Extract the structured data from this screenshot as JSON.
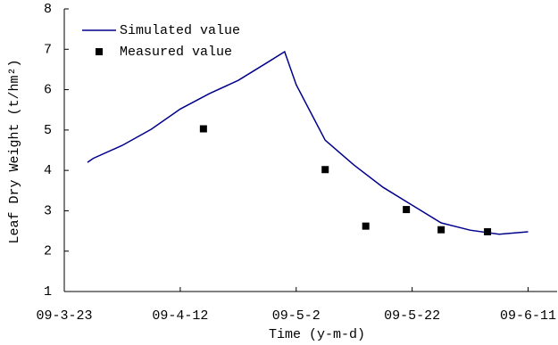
{
  "chart_data": {
    "type": "line",
    "x_label": "Time (y-m-d)",
    "y_label": "Leaf Dry Weight (t/hm²)",
    "xlim": [
      "09-3-23",
      "09-6-16"
    ],
    "xticks": [
      "09-3-23",
      "09-4-12",
      "09-5-2",
      "09-5-22",
      "09-6-11"
    ],
    "ylim": [
      1,
      8
    ],
    "yticks": [
      1,
      2,
      3,
      4,
      5,
      6,
      7,
      8
    ],
    "legend": "upper left",
    "series": [
      {
        "name": "Simulated value",
        "type": "line",
        "color": "#00008b",
        "x": [
          "09-3-27",
          "09-3-28",
          "09-4-2",
          "09-4-7",
          "09-4-12",
          "09-4-17",
          "09-4-22",
          "09-4-27",
          "09-4-30",
          "09-5-2",
          "09-5-7",
          "09-5-12",
          "09-5-17",
          "09-5-22",
          "09-5-27",
          "09-6-1",
          "09-6-6",
          "09-6-11"
        ],
        "values": [
          4.2,
          4.3,
          4.62,
          5.02,
          5.52,
          5.9,
          6.23,
          6.67,
          6.94,
          6.12,
          4.75,
          4.13,
          3.58,
          3.14,
          2.7,
          2.52,
          2.42,
          2.48
        ]
      },
      {
        "name": "Measured value",
        "type": "scatter",
        "color": "#000000",
        "x": [
          "09-4-16",
          "09-5-7",
          "09-5-14",
          "09-5-21",
          "09-5-27",
          "09-6-4"
        ],
        "values": [
          5.03,
          4.02,
          2.62,
          3.03,
          2.53,
          2.48
        ]
      }
    ]
  }
}
